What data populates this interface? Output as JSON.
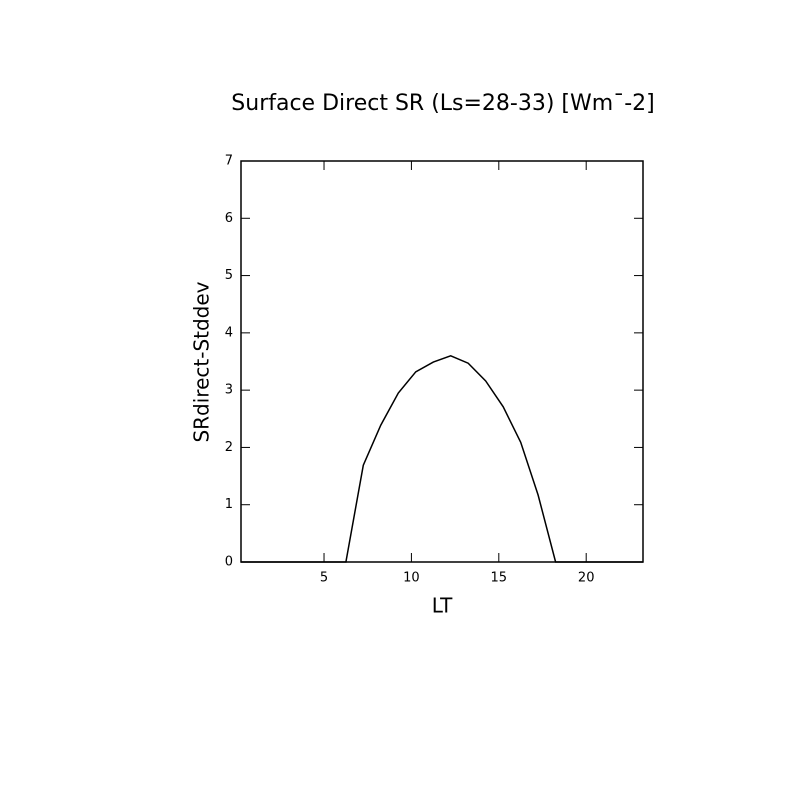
{
  "chart_data": {
    "type": "line",
    "title": "Surface Direct SR (Ls=28-33) [Wm¯-2]",
    "x_label": "LT",
    "y_label": "SRdirect-Stddev",
    "x": [
      0.25,
      1.25,
      2.25,
      3.25,
      4.25,
      5.25,
      6.25,
      7.25,
      8.25,
      9.25,
      10.25,
      11.25,
      12.25,
      13.25,
      14.25,
      15.25,
      16.25,
      17.25,
      18.25,
      19.25,
      20.25,
      21.25,
      22.25,
      23.25
    ],
    "values": [
      0,
      0,
      0,
      0,
      0,
      0,
      0,
      1.69,
      2.39,
      2.95,
      3.32,
      3.49,
      3.6,
      3.47,
      3.16,
      2.71,
      2.09,
      1.17,
      0,
      0,
      0,
      0,
      0,
      0
    ],
    "color": "#000000",
    "xlim": [
      0.25,
      23.25
    ],
    "xticks": [
      5,
      10,
      15,
      20
    ],
    "ylim": [
      0,
      7
    ],
    "yticks": [
      0,
      1,
      2,
      3,
      4,
      5,
      6,
      7
    ]
  }
}
